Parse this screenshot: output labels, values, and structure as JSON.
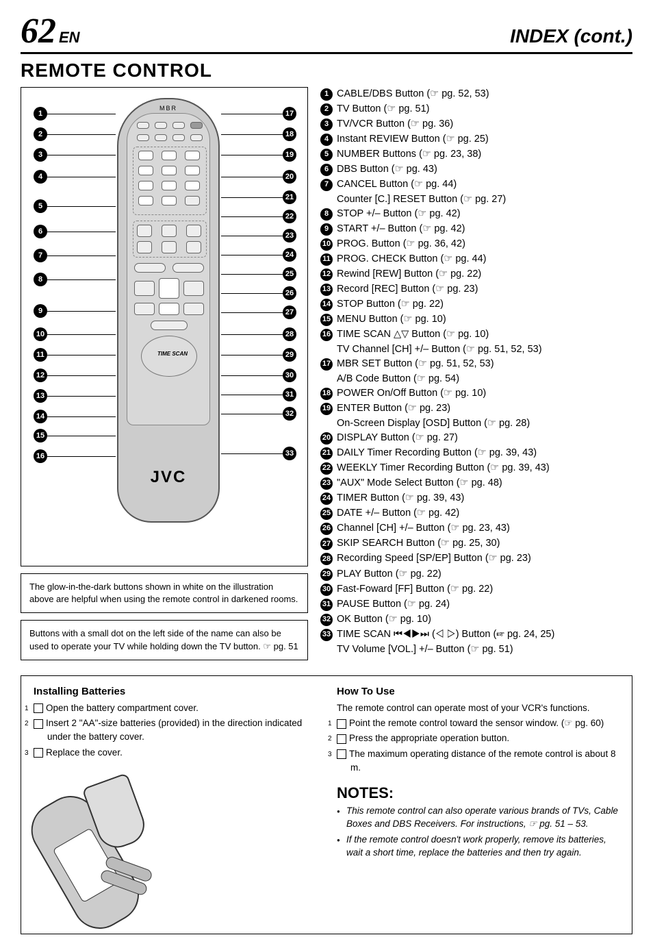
{
  "header": {
    "page_number": "62",
    "lang": "EN",
    "index_title": "INDEX (cont.)"
  },
  "section_title": "REMOTE CONTROL",
  "remote": {
    "brand": "JVC",
    "top_label": "MBR",
    "time_scan_label": "TIME SCAN",
    "left_callouts": [
      1,
      2,
      3,
      4,
      5,
      6,
      7,
      8,
      9,
      10,
      11,
      12,
      13,
      14,
      15,
      16
    ],
    "right_callouts": [
      17,
      18,
      19,
      20,
      21,
      22,
      23,
      24,
      25,
      26,
      27,
      28,
      29,
      30,
      31,
      32,
      33
    ]
  },
  "note_boxes": [
    "The glow-in-the-dark buttons shown in white on the illustration above are helpful when using the remote control in darkened rooms.",
    "Buttons with a small dot on the left side of the name can also be used to operate your TV while holding down the TV button. ☞ pg. 51"
  ],
  "button_list": [
    {
      "n": 1,
      "t": "CABLE/DBS Button (☞ pg. 52, 53)"
    },
    {
      "n": 2,
      "t": "TV Button (☞ pg. 51)"
    },
    {
      "n": 3,
      "t": "TV/VCR Button (☞ pg. 36)"
    },
    {
      "n": 4,
      "t": "Instant REVIEW Button (☞ pg. 25)"
    },
    {
      "n": 5,
      "t": "NUMBER Buttons (☞ pg. 23, 38)"
    },
    {
      "n": 6,
      "t": "DBS Button (☞ pg. 43)"
    },
    {
      "n": 7,
      "t": "CANCEL Button (☞ pg. 44)",
      "sub": "Counter [C.] RESET Button (☞ pg. 27)"
    },
    {
      "n": 8,
      "t": "STOP +/– Button (☞ pg. 42)"
    },
    {
      "n": 9,
      "t": "START +/– Button (☞ pg. 42)"
    },
    {
      "n": 10,
      "t": "PROG. Button (☞ pg. 36, 42)"
    },
    {
      "n": 11,
      "t": "PROG. CHECK Button (☞ pg. 44)"
    },
    {
      "n": 12,
      "t": "Rewind [REW] Button (☞ pg. 22)"
    },
    {
      "n": 13,
      "t": "Record [REC] Button (☞ pg. 23)"
    },
    {
      "n": 14,
      "t": "STOP Button (☞ pg. 22)"
    },
    {
      "n": 15,
      "t": "MENU Button (☞ pg. 10)"
    },
    {
      "n": 16,
      "t": "TIME SCAN △▽ Button (☞ pg. 10)",
      "sub": "TV Channel [CH] +/– Button (☞ pg. 51, 52, 53)"
    },
    {
      "n": 17,
      "t": "MBR SET Button (☞ pg. 51, 52, 53)",
      "sub": "A/B Code Button (☞ pg. 54)"
    },
    {
      "n": 18,
      "t": "POWER On/Off Button (☞ pg. 10)"
    },
    {
      "n": 19,
      "t": "ENTER Button (☞ pg. 23)",
      "sub": "On-Screen Display [OSD] Button (☞ pg. 28)"
    },
    {
      "n": 20,
      "t": "DISPLAY Button (☞ pg. 27)"
    },
    {
      "n": 21,
      "t": "DAILY Timer Recording Button (☞ pg. 39, 43)"
    },
    {
      "n": 22,
      "t": "WEEKLY Timer Recording Button (☞ pg. 39, 43)"
    },
    {
      "n": 23,
      "t": "\"AUX\" Mode Select Button (☞ pg. 48)"
    },
    {
      "n": 24,
      "t": "TIMER Button (☞ pg. 39, 43)"
    },
    {
      "n": 25,
      "t": "DATE +/– Button (☞ pg. 42)"
    },
    {
      "n": 26,
      "t": "Channel [CH] +/– Button (☞ pg. 23, 43)"
    },
    {
      "n": 27,
      "t": "SKIP SEARCH Button (☞ pg. 25, 30)"
    },
    {
      "n": 28,
      "t": "Recording Speed [SP/EP] Button (☞ pg. 23)"
    },
    {
      "n": 29,
      "t": "PLAY Button (☞ pg. 22)"
    },
    {
      "n": 30,
      "t": "Fast-Foward [FF] Button (☞ pg. 22)"
    },
    {
      "n": 31,
      "t": "PAUSE Button (☞ pg. 24)"
    },
    {
      "n": 32,
      "t": "OK Button (☞ pg. 10)"
    },
    {
      "n": 33,
      "t": "TIME SCAN ⏮◀▶⏭ (◁ ▷) Button (☞ pg. 24, 25)",
      "sub": "TV Volume [VOL.] +/– Button (☞ pg. 51)"
    }
  ],
  "install": {
    "heading": "Installing Batteries",
    "steps": [
      "Open the battery compartment cover.",
      "Insert 2 \"AA\"-size batteries (provided) in the direction indicated under the battery cover.",
      "Replace the cover."
    ]
  },
  "howto": {
    "heading": "How To Use",
    "intro": "The remote control can operate most of your VCR's functions.",
    "steps": [
      "Point the remote control toward the sensor window. (☞ pg. 60)",
      "Press the appropriate operation button.",
      "The maximum operating distance of the remote control is about 8 m."
    ]
  },
  "notes": {
    "heading": "NOTES:",
    "items": [
      "This remote control can also operate various brands of TVs, Cable Boxes and DBS Receivers. For instructions, ☞ pg. 51 – 53.",
      "If the remote control doesn't work properly, remove its batteries, wait a short time, replace the batteries and then try again."
    ]
  }
}
